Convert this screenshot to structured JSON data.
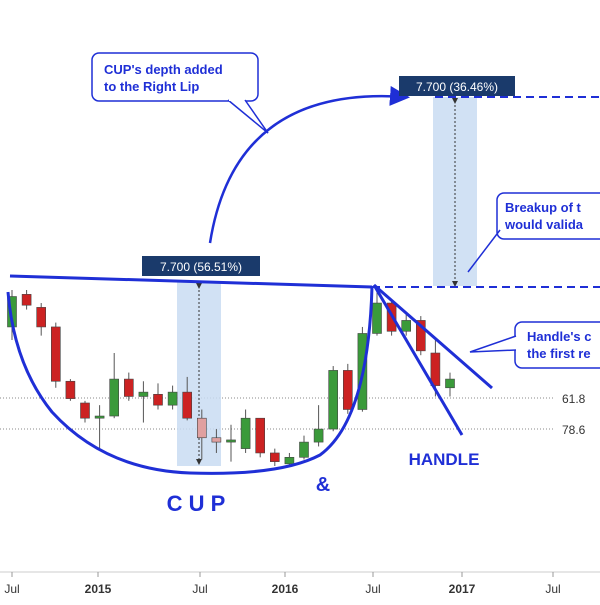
{
  "chart_data": {
    "type": "candlestick",
    "title": "",
    "xlabel": "",
    "ylabel": "",
    "x_ticks": [
      "Jul",
      "2015",
      "Jul",
      "2016",
      "Jul",
      "2017",
      "Jul"
    ],
    "y_ticks": [
      "61.8",
      "78.6"
    ],
    "candles": [
      {
        "o": 6.2,
        "h": 7.05,
        "l": 5.9,
        "c": 6.9
      },
      {
        "o": 6.95,
        "h": 7.05,
        "l": 6.6,
        "c": 6.7
      },
      {
        "o": 6.65,
        "h": 6.75,
        "l": 6.0,
        "c": 6.2
      },
      {
        "o": 6.2,
        "h": 6.3,
        "l": 4.8,
        "c": 4.95
      },
      {
        "o": 4.95,
        "h": 5.0,
        "l": 4.5,
        "c": 4.55
      },
      {
        "o": 4.45,
        "h": 4.5,
        "l": 4.0,
        "c": 4.1
      },
      {
        "o": 4.1,
        "h": 4.4,
        "l": 3.35,
        "c": 4.15
      },
      {
        "o": 4.15,
        "h": 5.6,
        "l": 4.1,
        "c": 5.0
      },
      {
        "o": 5.0,
        "h": 5.15,
        "l": 4.5,
        "c": 4.6
      },
      {
        "o": 4.6,
        "h": 4.95,
        "l": 4.0,
        "c": 4.7
      },
      {
        "o": 4.65,
        "h": 4.9,
        "l": 4.3,
        "c": 4.4
      },
      {
        "o": 4.4,
        "h": 4.85,
        "l": 4.3,
        "c": 4.7
      },
      {
        "o": 4.7,
        "h": 5.05,
        "l": 4.05,
        "c": 4.1
      },
      {
        "o": 4.1,
        "h": 4.3,
        "l": 3.15,
        "c": 3.65
      },
      {
        "o": 3.65,
        "h": 3.85,
        "l": 3.3,
        "c": 3.55
      },
      {
        "o": 3.55,
        "h": 3.95,
        "l": 3.1,
        "c": 3.6
      },
      {
        "o": 3.4,
        "h": 4.3,
        "l": 3.3,
        "c": 4.1
      },
      {
        "o": 4.1,
        "h": 4.1,
        "l": 3.2,
        "c": 3.3
      },
      {
        "o": 3.3,
        "h": 3.4,
        "l": 3.0,
        "c": 3.1
      },
      {
        "o": 3.05,
        "h": 3.3,
        "l": 3.0,
        "c": 3.2
      },
      {
        "o": 3.2,
        "h": 3.7,
        "l": 3.15,
        "c": 3.55
      },
      {
        "o": 3.55,
        "h": 4.4,
        "l": 3.45,
        "c": 3.85
      },
      {
        "o": 3.85,
        "h": 5.3,
        "l": 3.8,
        "c": 5.2
      },
      {
        "o": 5.2,
        "h": 5.35,
        "l": 4.2,
        "c": 4.3
      },
      {
        "o": 4.3,
        "h": 6.2,
        "l": 4.25,
        "c": 6.05
      },
      {
        "o": 6.05,
        "h": 7.05,
        "l": 6.0,
        "c": 6.75
      },
      {
        "o": 6.75,
        "h": 6.8,
        "l": 6.0,
        "c": 6.1
      },
      {
        "o": 6.1,
        "h": 6.5,
        "l": 6.0,
        "c": 6.35
      },
      {
        "o": 6.35,
        "h": 6.45,
        "l": 5.55,
        "c": 5.65
      },
      {
        "o": 5.6,
        "h": 5.95,
        "l": 4.6,
        "c": 4.85
      },
      {
        "o": 4.8,
        "h": 5.15,
        "l": 4.6,
        "c": 5.0
      }
    ],
    "measurements": [
      {
        "label": "7.700 (56.51%)"
      },
      {
        "label": "7.700 (36.46%)"
      }
    ],
    "annotations": {
      "cup_depth_note": [
        "CUP's depth added",
        "to the Right Lip"
      ],
      "breakup_note": [
        "Breakup of t",
        "would valida"
      ],
      "handle_note": [
        "Handle's c",
        "the first re"
      ],
      "cup_label": "C U P",
      "ampersand_label": "&",
      "handle_label": "HANDLE"
    },
    "colors": {
      "bull": "#3a9a3a",
      "bear": "#cc2222",
      "bear_faded": "#e0a0a0",
      "bull_faded": "#90c890",
      "pattern_line": "#1f2fd6",
      "measure_box": "#1a3a6b",
      "measure_fill": "#c9dcf2"
    }
  }
}
